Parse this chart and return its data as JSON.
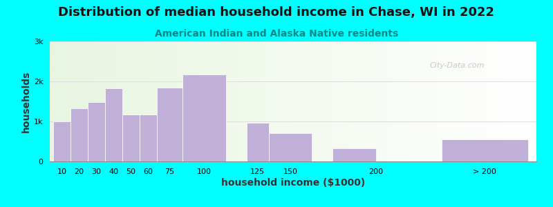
{
  "title": "Distribution of median household income in Chase, WI in 2022",
  "subtitle": "American Indian and Alaska Native residents",
  "xlabel": "household income ($1000)",
  "ylabel": "households",
  "background_outer": "#00FFFF",
  "bar_color": "#C0B0D8",
  "watermark": "City-Data.com",
  "bar_labels": [
    "10",
    "20",
    "30",
    "40",
    "50",
    "60",
    "75",
    "100",
    "125",
    "150",
    "200",
    "> 200"
  ],
  "bar_lefts": [
    0,
    10,
    20,
    30,
    40,
    50,
    60,
    75,
    112,
    125,
    162,
    225
  ],
  "bar_widths": [
    10,
    10,
    10,
    10,
    10,
    10,
    15,
    25,
    13,
    25,
    25,
    50
  ],
  "bar_heights": [
    1000,
    1320,
    1480,
    1820,
    1170,
    1170,
    1840,
    2180,
    960,
    700,
    320,
    550
  ],
  "xtick_pos": [
    5,
    15,
    25,
    35,
    45,
    55,
    67.5,
    87.5,
    118.5,
    137.5,
    187,
    250
  ],
  "xtick_labels": [
    "10",
    "20",
    "30",
    "40",
    "50",
    "60",
    "75",
    "100",
    "125",
    "150",
    "200",
    "> 200"
  ],
  "xlim": [
    -2,
    280
  ],
  "ylim": [
    0,
    3000
  ],
  "yticks": [
    0,
    1000,
    2000,
    3000
  ],
  "ytick_labels": [
    "0",
    "1k",
    "2k",
    "3k"
  ],
  "title_fontsize": 13,
  "subtitle_fontsize": 10,
  "axis_label_fontsize": 10,
  "tick_fontsize": 8,
  "plot_bg_green": "#E8F5E0",
  "plot_bg_white": "#FFFFFF"
}
